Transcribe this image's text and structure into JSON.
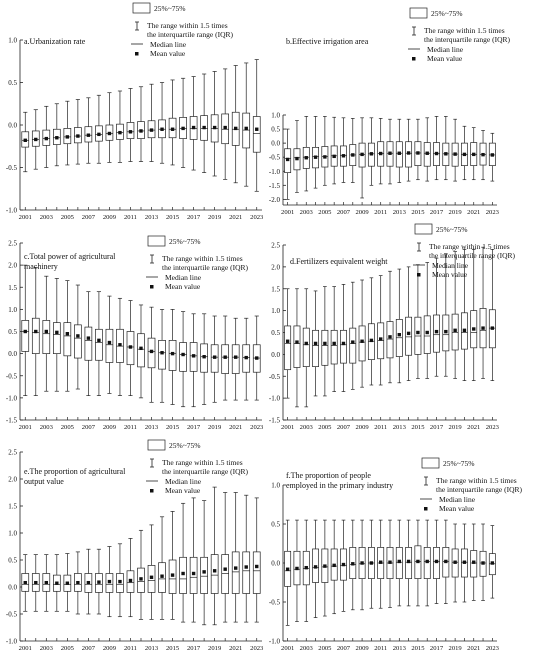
{
  "legend": {
    "box_label": "25%~75%",
    "range_line1": "The range within 1.5 times",
    "range_line2": "the interquartile range (IQR)",
    "median": "Median line",
    "mean": "Mean value"
  },
  "chart_data": [
    {
      "type": "box",
      "title": "a.Urbanization rate",
      "ylim": [
        -1.0,
        1.0
      ],
      "yticks": [
        -1.0,
        -0.5,
        0.0,
        0.5,
        1.0
      ],
      "ytick_labels": [
        "-1.0",
        "-0.5",
        "0.0",
        "0.5",
        "1.0"
      ],
      "x": [
        2001,
        2002,
        2003,
        2004,
        2005,
        2006,
        2007,
        2008,
        2009,
        2010,
        2011,
        2012,
        2013,
        2014,
        2015,
        2016,
        2017,
        2018,
        2019,
        2020,
        2021,
        2022,
        2023
      ],
      "x_tick_labels": [
        "2001",
        "2003",
        "2005",
        "2007",
        "2009",
        "2011",
        "2013",
        "2015",
        "2017",
        "2019",
        "2021",
        "2023"
      ],
      "q1": [
        -0.26,
        -0.25,
        -0.24,
        -0.23,
        -0.22,
        -0.21,
        -0.2,
        -0.19,
        -0.18,
        -0.17,
        -0.16,
        -0.16,
        -0.15,
        -0.15,
        -0.15,
        -0.16,
        -0.17,
        -0.18,
        -0.2,
        -0.22,
        -0.24,
        -0.27,
        -0.32
      ],
      "q3": [
        -0.08,
        -0.07,
        -0.06,
        -0.05,
        -0.04,
        -0.03,
        -0.02,
        -0.01,
        0.0,
        0.01,
        0.03,
        0.04,
        0.05,
        0.06,
        0.08,
        0.09,
        0.1,
        0.11,
        0.12,
        0.13,
        0.15,
        0.14,
        0.1
      ],
      "median": [
        -0.18,
        -0.17,
        -0.16,
        -0.15,
        -0.14,
        -0.13,
        -0.12,
        -0.11,
        -0.1,
        -0.09,
        -0.08,
        -0.07,
        -0.06,
        -0.05,
        -0.05,
        -0.04,
        -0.04,
        -0.04,
        -0.04,
        -0.05,
        -0.05,
        -0.06,
        -0.1
      ],
      "mean": [
        -0.18,
        -0.17,
        -0.16,
        -0.15,
        -0.14,
        -0.13,
        -0.12,
        -0.11,
        -0.1,
        -0.09,
        -0.08,
        -0.07,
        -0.06,
        -0.05,
        -0.05,
        -0.04,
        -0.03,
        -0.03,
        -0.03,
        -0.03,
        -0.04,
        -0.04,
        -0.05
      ],
      "whisker_low": [
        -0.55,
        -0.52,
        -0.5,
        -0.48,
        -0.47,
        -0.46,
        -0.45,
        -0.45,
        -0.44,
        -0.44,
        -0.43,
        -0.43,
        -0.43,
        -0.45,
        -0.47,
        -0.5,
        -0.53,
        -0.56,
        -0.6,
        -0.64,
        -0.68,
        -0.72,
        -0.78
      ],
      "whisker_high": [
        0.15,
        0.18,
        0.22,
        0.25,
        0.28,
        0.3,
        0.32,
        0.35,
        0.38,
        0.4,
        0.43,
        0.45,
        0.48,
        0.5,
        0.53,
        0.55,
        0.57,
        0.6,
        0.63,
        0.66,
        0.7,
        0.73,
        0.77
      ]
    },
    {
      "type": "box",
      "title": "b.Effective irrigation area",
      "ylim": [
        -2.2,
        1.0
      ],
      "yticks": [
        -2.0,
        -1.5,
        -1.0,
        -0.5,
        0.0,
        0.5,
        1.0
      ],
      "ytick_labels": [
        "-2.0",
        "-1.5",
        "-1.0",
        "-0.5",
        "0.0",
        "0.5",
        "1.0"
      ],
      "x": [
        2001,
        2002,
        2003,
        2004,
        2005,
        2006,
        2007,
        2008,
        2009,
        2010,
        2011,
        2012,
        2013,
        2014,
        2015,
        2016,
        2017,
        2018,
        2019,
        2020,
        2021,
        2022,
        2023
      ],
      "x_tick_labels": [
        "2001",
        "2003",
        "2005",
        "2007",
        "2009",
        "2011",
        "2013",
        "2015",
        "2017",
        "2019",
        "2021",
        "2023"
      ],
      "q1": [
        -1.05,
        -0.95,
        -0.9,
        -0.88,
        -0.85,
        -0.82,
        -0.82,
        -0.8,
        -0.85,
        -0.82,
        -0.82,
        -0.82,
        -0.85,
        -0.85,
        -0.8,
        -0.82,
        -0.8,
        -0.8,
        -0.82,
        -0.8,
        -0.8,
        -0.78,
        -0.8
      ],
      "q3": [
        -0.2,
        -0.2,
        -0.15,
        -0.15,
        -0.12,
        -0.1,
        -0.1,
        -0.05,
        0.0,
        0.0,
        0.05,
        0.05,
        0.05,
        0.05,
        0.05,
        0.02,
        0.02,
        0.0,
        0.0,
        0.0,
        0.02,
        0.0,
        0.0
      ],
      "median": [
        -0.55,
        -0.52,
        -0.5,
        -0.48,
        -0.47,
        -0.45,
        -0.44,
        -0.42,
        -0.4,
        -0.38,
        -0.37,
        -0.36,
        -0.36,
        -0.36,
        -0.35,
        -0.36,
        -0.37,
        -0.38,
        -0.39,
        -0.4,
        -0.4,
        -0.41,
        -0.42
      ],
      "mean": [
        -0.58,
        -0.55,
        -0.52,
        -0.5,
        -0.49,
        -0.47,
        -0.45,
        -0.42,
        -0.4,
        -0.38,
        -0.37,
        -0.36,
        -0.36,
        -0.35,
        -0.35,
        -0.36,
        -0.37,
        -0.38,
        -0.39,
        -0.4,
        -0.4,
        -0.41,
        -0.42
      ],
      "whisker_low": [
        -2.0,
        -1.75,
        -1.7,
        -1.6,
        -1.5,
        -1.45,
        -1.4,
        -1.4,
        -1.95,
        -1.5,
        -1.45,
        -1.45,
        -1.4,
        -1.35,
        -1.3,
        -1.35,
        -1.3,
        -1.3,
        -1.35,
        -1.3,
        -1.3,
        -1.3,
        -1.35
      ],
      "whisker_high": [
        0.5,
        0.8,
        0.95,
        0.95,
        0.95,
        0.92,
        0.9,
        0.88,
        0.9,
        0.9,
        0.88,
        0.85,
        0.85,
        0.85,
        0.85,
        0.9,
        0.95,
        0.95,
        0.85,
        0.6,
        0.55,
        0.45,
        0.35
      ]
    },
    {
      "type": "box",
      "title": "c.Total power of agricultural machinery",
      "title_lines": [
        "c.Total power of agricultural",
        "machinery"
      ],
      "ylim": [
        -1.5,
        2.5
      ],
      "yticks": [
        -1.5,
        -1.0,
        -0.5,
        0.0,
        0.5,
        1.0,
        1.5,
        2.0,
        2.5
      ],
      "ytick_labels": [
        "-1.5",
        "-1.0",
        "-0.5",
        "0.0",
        "0.5",
        "1.0",
        "1.5",
        "2.0",
        "2.5"
      ],
      "x": [
        2001,
        2002,
        2003,
        2004,
        2005,
        2006,
        2007,
        2008,
        2009,
        2010,
        2011,
        2012,
        2013,
        2014,
        2015,
        2016,
        2017,
        2018,
        2019,
        2020,
        2021,
        2022,
        2023
      ],
      "x_tick_labels": [
        "2001",
        "2003",
        "2005",
        "2007",
        "2009",
        "2011",
        "2013",
        "2015",
        "2017",
        "2019",
        "2021",
        "2023"
      ],
      "q1": [
        0.05,
        0.0,
        0.0,
        0.0,
        -0.05,
        -0.1,
        -0.15,
        -0.15,
        -0.2,
        -0.2,
        -0.25,
        -0.3,
        -0.32,
        -0.35,
        -0.38,
        -0.4,
        -0.4,
        -0.42,
        -0.42,
        -0.45,
        -0.45,
        -0.42,
        -0.42
      ],
      "q3": [
        0.75,
        0.8,
        0.75,
        0.7,
        0.7,
        0.65,
        0.6,
        0.55,
        0.55,
        0.55,
        0.5,
        0.45,
        0.35,
        0.3,
        0.3,
        0.25,
        0.25,
        0.22,
        0.2,
        0.2,
        0.2,
        0.2,
        0.2
      ],
      "median": [
        0.5,
        0.48,
        0.45,
        0.43,
        0.4,
        0.35,
        0.3,
        0.25,
        0.2,
        0.17,
        0.15,
        0.1,
        0.05,
        0.02,
        0.0,
        -0.02,
        -0.05,
        -0.07,
        -0.08,
        -0.08,
        -0.08,
        -0.09,
        -0.1
      ],
      "mean": [
        0.5,
        0.5,
        0.5,
        0.48,
        0.45,
        0.4,
        0.35,
        0.3,
        0.25,
        0.2,
        0.15,
        0.12,
        0.05,
        0.02,
        0.0,
        -0.02,
        -0.05,
        -0.07,
        -0.08,
        -0.08,
        -0.08,
        -0.09,
        -0.1
      ],
      "whisker_low": [
        -0.95,
        -0.95,
        -0.85,
        -0.85,
        -0.85,
        -0.8,
        -0.95,
        -0.95,
        -0.9,
        -0.95,
        -0.95,
        -1.0,
        -1.1,
        -1.1,
        -1.15,
        -1.2,
        -1.2,
        -1.15,
        -1.1,
        -1.05,
        -1.05,
        -1.05,
        -1.05
      ],
      "whisker_high": [
        2.0,
        1.95,
        1.75,
        1.7,
        1.65,
        1.55,
        1.4,
        1.4,
        1.3,
        1.25,
        1.2,
        1.1,
        1.05,
        1.0,
        1.0,
        0.95,
        0.9,
        0.9,
        0.85,
        0.85,
        0.8,
        0.8,
        0.85
      ]
    },
    {
      "type": "box",
      "title": "d.Fertilizers equivalent weight",
      "ylim": [
        -1.5,
        2.5
      ],
      "yticks": [
        -1.5,
        -1.0,
        -0.5,
        0.0,
        0.5,
        1.0,
        1.5,
        2.0,
        2.5
      ],
      "ytick_labels": [
        "-1.5",
        "-1.0",
        "-0.5",
        "0.0",
        "0.5",
        "1.0",
        "1.5",
        "2.0",
        "2.5"
      ],
      "x": [
        2001,
        2002,
        2003,
        2004,
        2005,
        2006,
        2007,
        2008,
        2009,
        2010,
        2011,
        2012,
        2013,
        2014,
        2015,
        2016,
        2017,
        2018,
        2019,
        2020,
        2021,
        2022,
        2023
      ],
      "x_tick_labels": [
        "2001",
        "2003",
        "2005",
        "2007",
        "2009",
        "2011",
        "2013",
        "2015",
        "2017",
        "2019",
        "2021",
        "2023"
      ],
      "q1": [
        -0.35,
        -0.3,
        -0.28,
        -0.28,
        -0.25,
        -0.22,
        -0.2,
        -0.2,
        -0.15,
        -0.12,
        -0.1,
        -0.08,
        -0.05,
        -0.02,
        0.0,
        0.02,
        0.05,
        0.08,
        0.1,
        0.12,
        0.15,
        0.15,
        0.15
      ],
      "q3": [
        0.65,
        0.65,
        0.6,
        0.55,
        0.55,
        0.55,
        0.55,
        0.6,
        0.65,
        0.7,
        0.72,
        0.75,
        0.8,
        0.85,
        0.85,
        0.88,
        0.9,
        0.9,
        0.92,
        0.95,
        1.0,
        1.05,
        1.02
      ],
      "median": [
        0.25,
        0.25,
        0.22,
        0.2,
        0.2,
        0.2,
        0.22,
        0.25,
        0.28,
        0.3,
        0.32,
        0.35,
        0.38,
        0.4,
        0.42,
        0.42,
        0.45,
        0.45,
        0.5,
        0.5,
        0.5,
        0.55,
        0.6
      ],
      "mean": [
        0.3,
        0.28,
        0.25,
        0.25,
        0.25,
        0.25,
        0.25,
        0.28,
        0.3,
        0.32,
        0.35,
        0.4,
        0.45,
        0.48,
        0.5,
        0.5,
        0.52,
        0.52,
        0.55,
        0.55,
        0.58,
        0.6,
        0.6
      ],
      "whisker_low": [
        -1.0,
        -1.2,
        -1.2,
        -0.95,
        -0.95,
        -0.85,
        -0.85,
        -0.8,
        -0.75,
        -0.7,
        -0.7,
        -0.65,
        -0.65,
        -0.6,
        -0.55,
        -0.55,
        -0.5,
        -0.5,
        -0.55,
        -0.6,
        -0.6,
        -0.55,
        -0.6
      ],
      "whisker_high": [
        1.5,
        1.5,
        1.5,
        1.45,
        1.55,
        1.55,
        1.6,
        1.65,
        1.7,
        1.75,
        1.8,
        1.9,
        1.95,
        2.0,
        2.05,
        2.1,
        2.2,
        2.3,
        2.35,
        2.4,
        2.4,
        2.45,
        2.4
      ]
    },
    {
      "type": "box",
      "title": "e.The proportion of agricultural output value",
      "title_lines": [
        "e.The proportion of agricultural",
        "output value"
      ],
      "ylim": [
        -1.0,
        2.5
      ],
      "yticks": [
        -1.0,
        -0.5,
        0.0,
        0.5,
        1.0,
        1.5,
        2.0,
        2.5
      ],
      "ytick_labels": [
        "-1.0",
        "-0.5",
        "0.0",
        "0.5",
        "1.0",
        "1.5",
        "2.0",
        "2.5"
      ],
      "x": [
        2001,
        2002,
        2003,
        2004,
        2005,
        2006,
        2007,
        2008,
        2009,
        2010,
        2011,
        2012,
        2013,
        2014,
        2015,
        2016,
        2017,
        2018,
        2019,
        2020,
        2021,
        2022,
        2023
      ],
      "x_tick_labels": [
        "2001",
        "2003",
        "2005",
        "2007",
        "2009",
        "2011",
        "2013",
        "2015",
        "2017",
        "2019",
        "2021",
        "2023"
      ],
      "q1": [
        -0.08,
        -0.08,
        -0.08,
        -0.08,
        -0.08,
        -0.08,
        -0.1,
        -0.1,
        -0.1,
        -0.1,
        -0.1,
        -0.1,
        -0.1,
        -0.1,
        -0.12,
        -0.12,
        -0.12,
        -0.12,
        -0.12,
        -0.12,
        -0.12,
        -0.12,
        -0.12
      ],
      "q3": [
        0.25,
        0.25,
        0.25,
        0.22,
        0.22,
        0.25,
        0.25,
        0.25,
        0.25,
        0.25,
        0.3,
        0.35,
        0.4,
        0.45,
        0.5,
        0.55,
        0.55,
        0.55,
        0.6,
        0.6,
        0.65,
        0.65,
        0.65
      ],
      "median": [
        0.05,
        0.05,
        0.05,
        0.05,
        0.05,
        0.05,
        0.05,
        0.05,
        0.05,
        0.05,
        0.08,
        0.1,
        0.12,
        0.15,
        0.15,
        0.15,
        0.18,
        0.2,
        0.22,
        0.25,
        0.28,
        0.3,
        0.3
      ],
      "mean": [
        0.08,
        0.08,
        0.08,
        0.07,
        0.07,
        0.08,
        0.08,
        0.09,
        0.1,
        0.1,
        0.12,
        0.15,
        0.18,
        0.2,
        0.22,
        0.25,
        0.25,
        0.28,
        0.3,
        0.33,
        0.35,
        0.37,
        0.38
      ],
      "whisker_low": [
        -0.45,
        -0.45,
        -0.45,
        -0.45,
        -0.45,
        -0.5,
        -0.5,
        -0.5,
        -0.55,
        -0.55,
        -0.55,
        -0.6,
        -0.6,
        -0.6,
        -0.6,
        -0.65,
        -0.65,
        -0.7,
        -0.7,
        -0.65,
        -0.65,
        -0.65,
        -0.65
      ],
      "whisker_high": [
        0.6,
        0.6,
        0.6,
        0.6,
        0.62,
        0.65,
        0.7,
        0.7,
        0.75,
        0.8,
        0.9,
        1.05,
        1.15,
        1.3,
        1.4,
        1.55,
        1.65,
        1.6,
        1.85,
        1.75,
        1.75,
        1.7,
        1.65
      ]
    },
    {
      "type": "box",
      "title": "f.The proportion of people employed in the primary industry",
      "title_lines": [
        "f.The proportion of people",
        "employed in the primary industry"
      ],
      "ylim": [
        -1.0,
        1.0
      ],
      "yticks": [
        -1.0,
        -0.5,
        0.0,
        0.5,
        1.0
      ],
      "ytick_labels": [
        "-1.0",
        "-0.5",
        "0.0",
        "0.5",
        "1.0"
      ],
      "x": [
        2001,
        2002,
        2003,
        2004,
        2005,
        2006,
        2007,
        2008,
        2009,
        2010,
        2011,
        2012,
        2013,
        2014,
        2015,
        2016,
        2017,
        2018,
        2019,
        2020,
        2021,
        2022,
        2023
      ],
      "x_tick_labels": [
        "2001",
        "2003",
        "2005",
        "2007",
        "2009",
        "2011",
        "2013",
        "2015",
        "2017",
        "2019",
        "2021",
        "2023"
      ],
      "q1": [
        -0.3,
        -0.28,
        -0.28,
        -0.25,
        -0.25,
        -0.22,
        -0.22,
        -0.2,
        -0.2,
        -0.2,
        -0.2,
        -0.2,
        -0.2,
        -0.2,
        -0.2,
        -0.2,
        -0.2,
        -0.18,
        -0.18,
        -0.18,
        -0.18,
        -0.17,
        -0.15
      ],
      "q3": [
        0.15,
        0.15,
        0.15,
        0.18,
        0.18,
        0.18,
        0.18,
        0.2,
        0.2,
        0.2,
        0.2,
        0.2,
        0.2,
        0.2,
        0.22,
        0.2,
        0.2,
        0.2,
        0.18,
        0.18,
        0.16,
        0.15,
        0.12
      ],
      "median": [
        -0.1,
        -0.08,
        -0.07,
        -0.06,
        -0.05,
        -0.04,
        -0.03,
        -0.02,
        -0.01,
        0.0,
        0.0,
        0.0,
        0.01,
        0.01,
        0.02,
        0.02,
        0.02,
        0.02,
        0.01,
        0.01,
        0.0,
        0.0,
        -0.01
      ],
      "mean": [
        -0.08,
        -0.07,
        -0.06,
        -0.05,
        -0.04,
        -0.03,
        -0.02,
        -0.01,
        0.0,
        0.0,
        0.01,
        0.01,
        0.02,
        0.02,
        0.02,
        0.02,
        0.02,
        0.02,
        0.01,
        0.01,
        0.01,
        0.0,
        0.0
      ],
      "whisker_low": [
        -0.8,
        -0.75,
        -0.75,
        -0.7,
        -0.68,
        -0.65,
        -0.62,
        -0.6,
        -0.6,
        -0.58,
        -0.58,
        -0.57,
        -0.55,
        -0.55,
        -0.55,
        -0.55,
        -0.52,
        -0.52,
        -0.5,
        -0.5,
        -0.48,
        -0.48,
        -0.45
      ],
      "whisker_high": [
        0.55,
        0.55,
        0.55,
        0.55,
        0.55,
        0.55,
        0.55,
        0.55,
        0.55,
        0.55,
        0.55,
        0.55,
        0.55,
        0.55,
        0.55,
        0.55,
        0.55,
        0.55,
        0.5,
        0.5,
        0.5,
        0.5,
        0.48
      ]
    }
  ]
}
